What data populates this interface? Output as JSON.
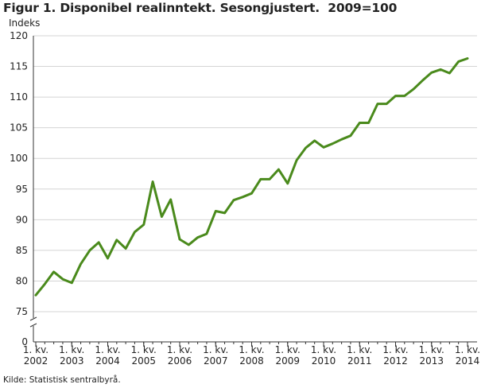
{
  "chart_data": {
    "type": "line",
    "title": "Figur 1. Disponibel realinntekt. Sesongjustert.  2009=100",
    "ylabel": "Indeks",
    "xlabel": "",
    "source": "Kilde: Statistisk sentralbyrå.",
    "ylim": [
      0,
      120
    ],
    "yticks": [
      0,
      75,
      80,
      85,
      90,
      95,
      100,
      105,
      110,
      115,
      120
    ],
    "y_axis_break": true,
    "grid": true,
    "x_ticks": [
      {
        "line1": "1. kv.",
        "line2": "2002",
        "index": 0
      },
      {
        "line1": "1. kv.",
        "line2": "2003",
        "index": 4
      },
      {
        "line1": "1. kv.",
        "line2": "2004",
        "index": 8
      },
      {
        "line1": "1. kv.",
        "line2": "2005",
        "index": 12
      },
      {
        "line1": "1. kv.",
        "line2": "2006",
        "index": 16
      },
      {
        "line1": "1. kv.",
        "line2": "2007",
        "index": 20
      },
      {
        "line1": "1. kv.",
        "line2": "2008",
        "index": 24
      },
      {
        "line1": "1. kv.",
        "line2": "2009",
        "index": 28
      },
      {
        "line1": "1. kv.",
        "line2": "2010",
        "index": 32
      },
      {
        "line1": "1. kv.",
        "line2": "2011",
        "index": 36
      },
      {
        "line1": "1. kv.",
        "line2": "2012",
        "index": 40
      },
      {
        "line1": "1. kv.",
        "line2": "2013",
        "index": 44
      },
      {
        "line1": "1. kv.",
        "line2": "2014",
        "index": 48
      }
    ],
    "series": [
      {
        "color": "#4a8a1c",
        "values": [
          77.7,
          79.5,
          81.5,
          80.3,
          79.7,
          82.8,
          85.0,
          86.3,
          83.7,
          86.7,
          85.3,
          88.0,
          89.2,
          96.2,
          90.5,
          93.3,
          86.8,
          85.9,
          87.1,
          87.7,
          91.4,
          91.1,
          93.2,
          93.7,
          94.3,
          96.6,
          96.6,
          98.2,
          95.9,
          99.7,
          101.7,
          102.9,
          101.8,
          102.4,
          103.1,
          103.7,
          105.8,
          105.8,
          108.9,
          108.9,
          110.2,
          110.2,
          111.3,
          112.7,
          114.0,
          114.5,
          113.9,
          115.8,
          116.3
        ]
      }
    ]
  }
}
